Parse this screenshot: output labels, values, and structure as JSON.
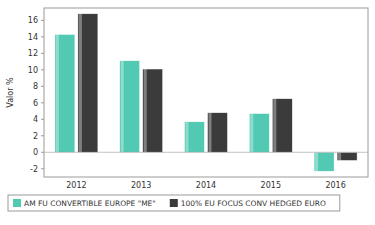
{
  "chart_data": {
    "type": "bar",
    "y_label": "Valor %",
    "categories": [
      "2012",
      "2013",
      "2014",
      "2015",
      "2016"
    ],
    "series": [
      {
        "name": "AM FU CONVERTIBLE EUROPE \"ME\"",
        "color": "#52c9b2",
        "values": [
          14.3,
          11.1,
          3.7,
          4.7,
          -2.3
        ]
      },
      {
        "name": "100% EU FOCUS CONV HEDGED EURO",
        "color": "#3b3b3b",
        "values": [
          16.8,
          10.1,
          4.8,
          6.5,
          -1.0
        ]
      }
    ],
    "ylim": [
      -3,
      17.5
    ],
    "yticks": [
      -2,
      0,
      2,
      4,
      6,
      8,
      10,
      12,
      14,
      16
    ],
    "grid": false,
    "legend": "bottom"
  }
}
